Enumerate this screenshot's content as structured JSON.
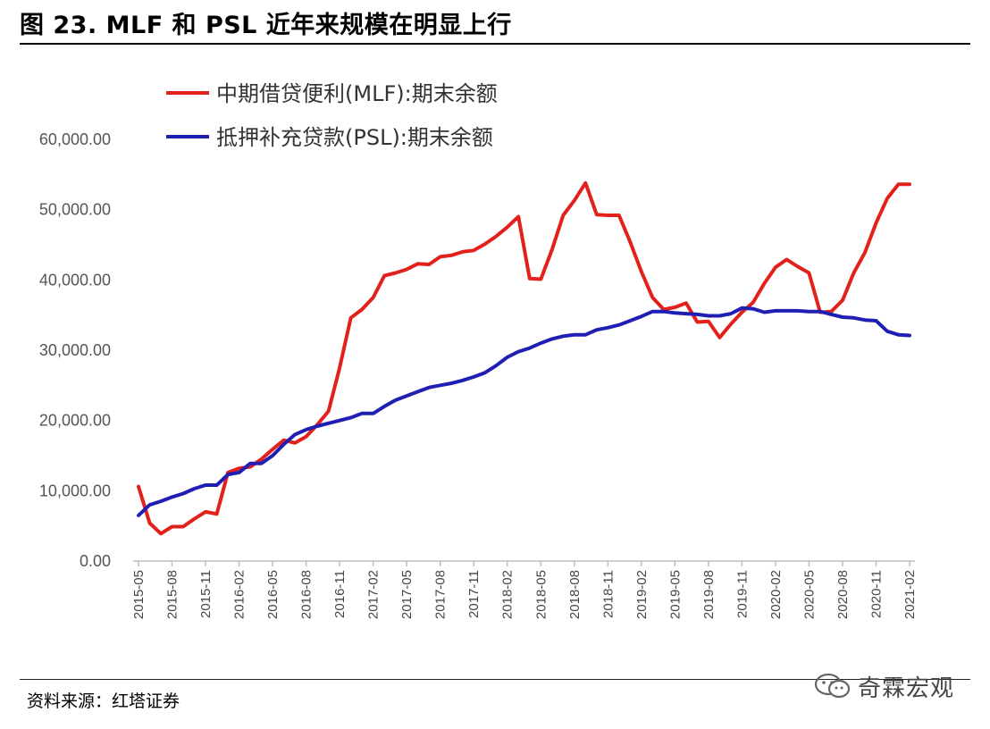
{
  "header": {
    "title": "图 23. MLF 和 PSL 近年来规模在明显上行"
  },
  "footer": {
    "source": "资料来源：红塔证券",
    "watermark_text": "奇霖宏观"
  },
  "colors": {
    "mlf": "#e3211c",
    "psl": "#1f1fb4",
    "axis": "#bfbfbf"
  },
  "chart_data": {
    "type": "line",
    "title": "",
    "xlabel": "",
    "ylabel": "",
    "ylim": [
      0,
      60000
    ],
    "yticks": [
      "0.00",
      "10,000.00",
      "20,000.00",
      "30,000.00",
      "40,000.00",
      "50,000.00",
      "60,000.00"
    ],
    "x": [
      "2015-05",
      "2015-06",
      "2015-07",
      "2015-08",
      "2015-09",
      "2015-10",
      "2015-11",
      "2015-12",
      "2016-01",
      "2016-02",
      "2016-03",
      "2016-04",
      "2016-05",
      "2016-06",
      "2016-07",
      "2016-08",
      "2016-09",
      "2016-10",
      "2016-11",
      "2016-12",
      "2017-01",
      "2017-02",
      "2017-03",
      "2017-04",
      "2017-05",
      "2017-06",
      "2017-07",
      "2017-08",
      "2017-09",
      "2017-10",
      "2017-11",
      "2017-12",
      "2018-01",
      "2018-02",
      "2018-03",
      "2018-04",
      "2018-05",
      "2018-06",
      "2018-07",
      "2018-08",
      "2018-09",
      "2018-10",
      "2018-11",
      "2018-12",
      "2019-01",
      "2019-02",
      "2019-03",
      "2019-04",
      "2019-05",
      "2019-06",
      "2019-07",
      "2019-08",
      "2019-09",
      "2019-10",
      "2019-11",
      "2019-12",
      "2020-01",
      "2020-02",
      "2020-03",
      "2020-04",
      "2020-05",
      "2020-06",
      "2020-07",
      "2020-08",
      "2020-09",
      "2020-10",
      "2020-11",
      "2020-12",
      "2021-01",
      "2021-02"
    ],
    "xtick_labels": [
      "2015-05",
      "2015-08",
      "2015-11",
      "2016-02",
      "2016-05",
      "2016-08",
      "2016-11",
      "2017-02",
      "2017-05",
      "2017-08",
      "2017-11",
      "2018-02",
      "2018-05",
      "2018-08",
      "2018-11",
      "2019-02",
      "2019-05",
      "2019-08",
      "2019-11",
      "2020-02",
      "2020-05",
      "2020-08",
      "2020-11",
      "2021-02"
    ],
    "series": [
      {
        "name": "中期借贷便利(MLF):期末余额",
        "color": "#e3211c",
        "values": [
          10600,
          5400,
          3900,
          4900,
          4900,
          6000,
          7000,
          6700,
          12600,
          13200,
          13400,
          14500,
          15900,
          17200,
          16800,
          17700,
          19400,
          21300,
          27500,
          34600,
          35800,
          37500,
          40600,
          41000,
          41500,
          42300,
          42200,
          43300,
          43500,
          44000,
          44200,
          45100,
          46200,
          47500,
          49000,
          40200,
          40100,
          44300,
          49200,
          51300,
          53800,
          49300,
          49200,
          49200,
          45400,
          41200,
          37500,
          35800,
          36100,
          36700,
          34000,
          34100,
          31800,
          33700,
          35400,
          36800,
          39500,
          41800,
          42900,
          41900,
          41000,
          35400,
          35500,
          37100,
          41000,
          43900,
          48100,
          51600,
          53600,
          53600
        ]
      },
      {
        "name": "抵押补充贷款(PSL):期末余额",
        "color": "#1f1fb4",
        "values": [
          6500,
          8000,
          8500,
          9100,
          9600,
          10300,
          10800,
          10800,
          12300,
          12600,
          13900,
          13900,
          15000,
          16600,
          18000,
          18700,
          19200,
          19600,
          20000,
          20400,
          21000,
          21000,
          22000,
          22900,
          23500,
          24100,
          24700,
          25000,
          25300,
          25700,
          26200,
          26800,
          27800,
          29000,
          29800,
          30300,
          31000,
          31600,
          32000,
          32200,
          32200,
          32900,
          33200,
          33600,
          34200,
          34800,
          35500,
          35500,
          35300,
          35200,
          35100,
          34900,
          34900,
          35200,
          36000,
          35900,
          35400,
          35600,
          35600,
          35600,
          35500,
          35500,
          35100,
          34700,
          34600,
          34300,
          34200,
          32700,
          32200,
          32100
        ]
      }
    ],
    "legend_position": "top-left",
    "grid": false
  }
}
